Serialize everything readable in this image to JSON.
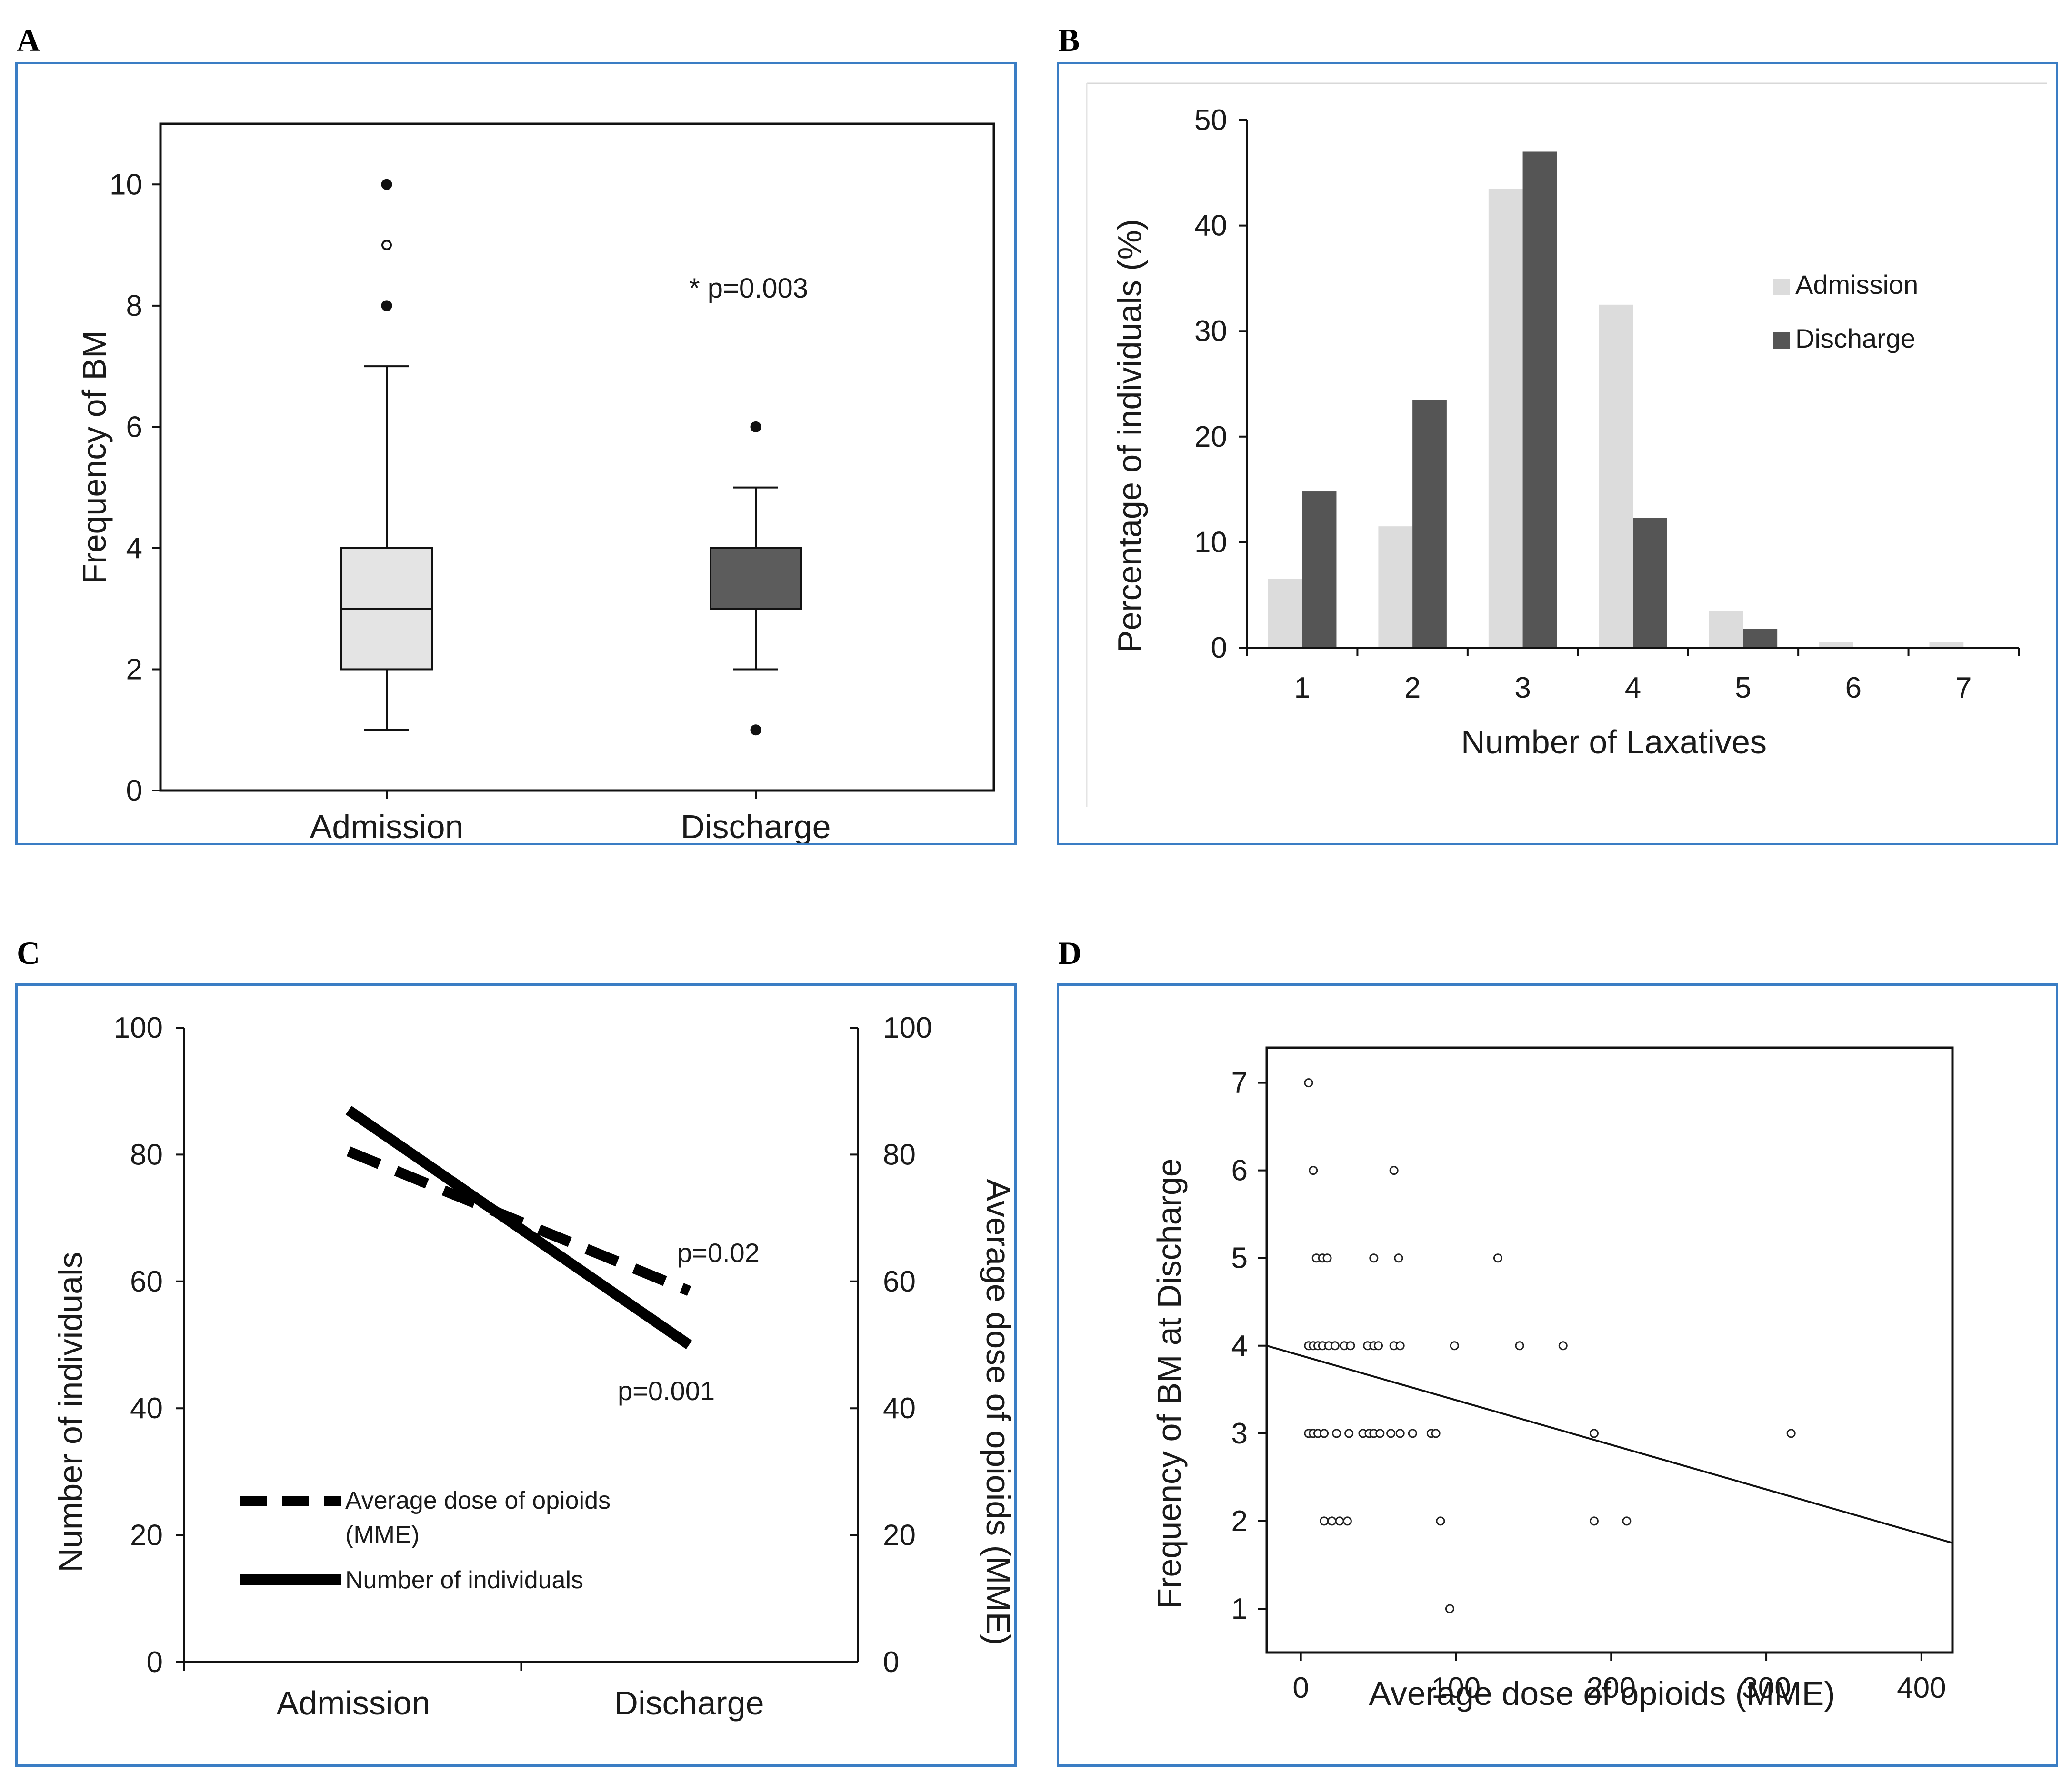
{
  "panel_labels": {
    "a": "A",
    "b": "B",
    "c": "C",
    "d": "D"
  },
  "colors": {
    "border": "#3a7dc4",
    "light_fill": "#e4e4e4",
    "dark_fill": "#5c5c5c",
    "admission_bar": "#dcdcdc",
    "discharge_bar": "#555555"
  },
  "chart_data": [
    {
      "id": "A",
      "type": "box",
      "ylabel": "Frequency of BM",
      "ylim": [
        0,
        11
      ],
      "yticks": [
        0,
        2,
        4,
        6,
        8,
        10
      ],
      "categories": [
        "Admission",
        "Discharge"
      ],
      "boxes": [
        {
          "name": "Admission",
          "whisker_low": 1,
          "q1": 2,
          "median": 3,
          "q3": 4,
          "whisker_high": 7,
          "outliers": [
            {
              "v": 8,
              "filled": true
            },
            {
              "v": 9,
              "filled": false
            },
            {
              "v": 10,
              "filled": true
            }
          ]
        },
        {
          "name": "Discharge",
          "whisker_low": 2,
          "q1": 3,
          "median": 3,
          "q3": 4,
          "whisker_high": 5,
          "outliers": [
            {
              "v": 1,
              "filled": true
            },
            {
              "v": 6,
              "filled": true
            }
          ]
        }
      ],
      "annotation": "* p=0.003"
    },
    {
      "id": "B",
      "type": "bar",
      "xlabel": "Number of Laxatives",
      "ylabel": "Percentage of individuals (%)",
      "ylim": [
        0,
        50
      ],
      "yticks": [
        0,
        10,
        20,
        30,
        40,
        50
      ],
      "categories": [
        "1",
        "2",
        "3",
        "4",
        "5",
        "6",
        "7"
      ],
      "series": [
        {
          "name": "Admission",
          "values": [
            6.5,
            11.5,
            43.5,
            32.5,
            3.5,
            0.5,
            0.5
          ]
        },
        {
          "name": "Discharge",
          "values": [
            14.8,
            23.5,
            47,
            12.3,
            1.8,
            0,
            0
          ]
        }
      ],
      "legend": [
        "Admission",
        "Discharge"
      ]
    },
    {
      "id": "C",
      "type": "line",
      "ylabel": "Number of individuals",
      "y2label": "Average dose of opioids (MME)",
      "ylim": [
        0,
        100
      ],
      "yticks": [
        0,
        20,
        40,
        60,
        80,
        100
      ],
      "categories": [
        "Admission",
        "Discharge"
      ],
      "series": [
        {
          "name": "Average dose of opioids (MME)",
          "style": "dashed",
          "values": [
            80.5,
            58.5
          ],
          "p": "p=0.02"
        },
        {
          "name": "Number of individuals",
          "style": "solid",
          "values": [
            87,
            50
          ],
          "p": "p=0.001"
        }
      ],
      "legend": [
        "Average dose of opioids",
        "(MME)",
        "Number of individuals"
      ]
    },
    {
      "id": "D",
      "type": "scatter",
      "xlabel": "Average dose of opioids (MME)",
      "ylabel": "Frequency of BM at Discharge",
      "xlim": [
        -22,
        420
      ],
      "ylim": [
        0.5,
        7.4
      ],
      "xticks": [
        0,
        100,
        200,
        300,
        400
      ],
      "yticks": [
        1,
        2,
        3,
        4,
        5,
        6,
        7
      ],
      "points": [
        [
          5,
          7
        ],
        [
          8,
          6
        ],
        [
          60,
          6
        ],
        [
          10,
          5
        ],
        [
          14,
          5
        ],
        [
          17,
          5
        ],
        [
          47,
          5
        ],
        [
          63,
          5
        ],
        [
          127,
          5
        ],
        [
          5,
          4
        ],
        [
          8,
          4
        ],
        [
          11,
          4
        ],
        [
          14,
          4
        ],
        [
          18,
          4
        ],
        [
          22,
          4
        ],
        [
          28,
          4
        ],
        [
          32,
          4
        ],
        [
          43,
          4
        ],
        [
          47,
          4
        ],
        [
          50,
          4
        ],
        [
          60,
          4
        ],
        [
          64,
          4
        ],
        [
          99,
          4
        ],
        [
          141,
          4
        ],
        [
          169,
          4
        ],
        [
          5,
          3
        ],
        [
          8,
          3
        ],
        [
          11,
          3
        ],
        [
          15,
          3
        ],
        [
          23,
          3
        ],
        [
          31,
          3
        ],
        [
          40,
          3
        ],
        [
          44,
          3
        ],
        [
          47,
          3
        ],
        [
          51,
          3
        ],
        [
          58,
          3
        ],
        [
          64,
          3
        ],
        [
          72,
          3
        ],
        [
          84,
          3
        ],
        [
          87,
          3
        ],
        [
          189,
          3
        ],
        [
          316,
          3
        ],
        [
          15,
          2
        ],
        [
          20,
          2
        ],
        [
          25,
          2
        ],
        [
          30,
          2
        ],
        [
          90,
          2
        ],
        [
          189,
          2
        ],
        [
          210,
          2
        ],
        [
          96,
          1
        ]
      ],
      "fit": {
        "x0": -22,
        "y0": 4.0,
        "x1": 420,
        "y1": 1.75
      }
    }
  ]
}
